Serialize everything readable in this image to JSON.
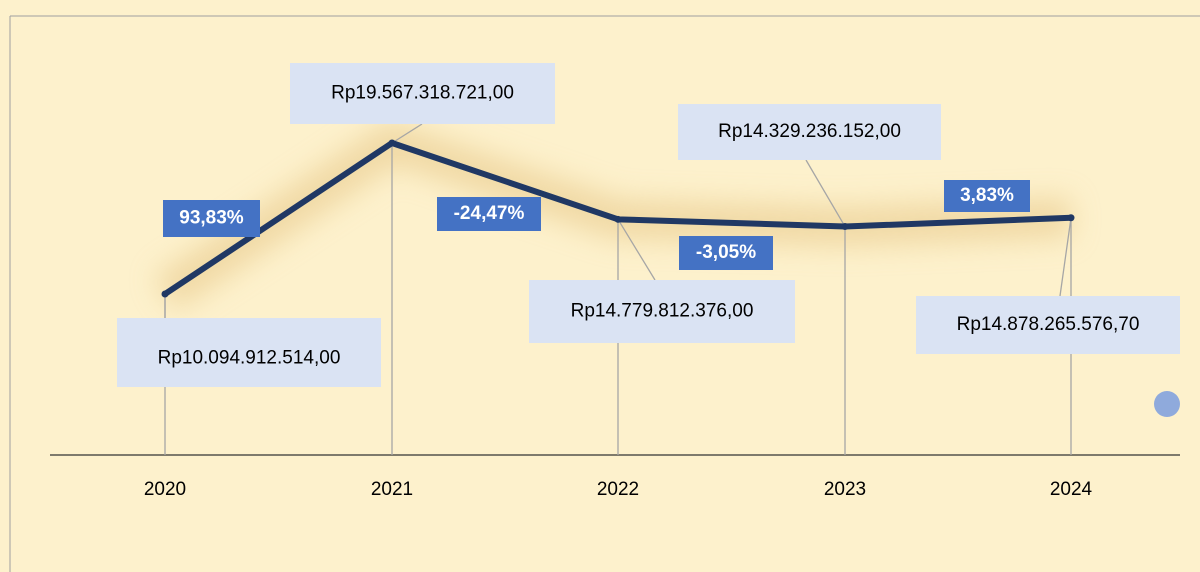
{
  "chart_data": {
    "type": "line",
    "categories": [
      "2020",
      "2021",
      "2022",
      "2023",
      "2024"
    ],
    "values": [
      10094912514.0,
      19567318721.0,
      14779812376.0,
      14329236152.0,
      14878265576.7
    ],
    "value_labels": [
      "Rp10.094.912.514,00",
      "Rp19.567.318.721,00",
      "Rp14.779.812.376,00",
      "Rp14.329.236.152,00",
      "Rp14.878.265.576,70"
    ],
    "color": "#203864",
    "changes": {
      "values": [
        93.83,
        -24.47,
        -3.05,
        3.83
      ],
      "value_labels": [
        "93,83%",
        "-24,47%",
        "-3,05%",
        "3,83%"
      ],
      "color": "#4472c4"
    }
  }
}
